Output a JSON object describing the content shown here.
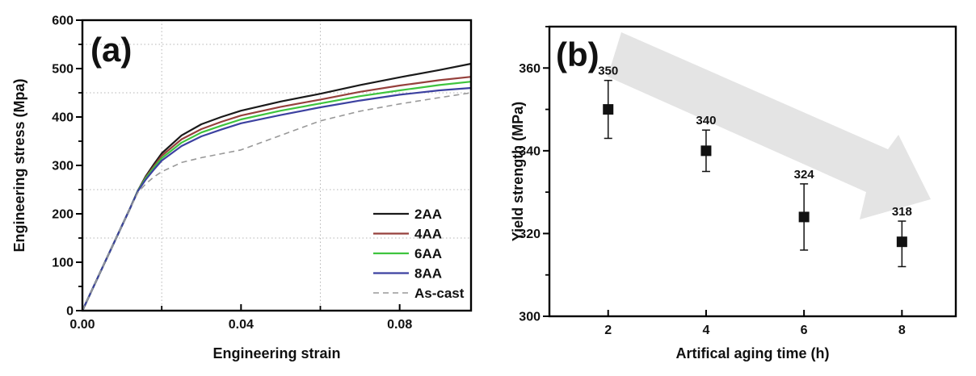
{
  "figure": {
    "background": "#ffffff",
    "frame_color": "#000000",
    "grid_color": "#b5b5b5"
  },
  "chart_data": [
    {
      "id": "a",
      "type": "line",
      "panel_label": "(a)",
      "xlabel": "Engineering strain",
      "ylabel": "Engineering stress (Mpa)",
      "xlim": [
        0,
        0.098
      ],
      "ylim": [
        0,
        600
      ],
      "xticks": {
        "major": [
          0,
          0.04,
          0.08
        ],
        "major_labels": [
          "0.00",
          "0.04",
          "0.08"
        ],
        "minor": [
          0.02,
          0.06
        ]
      },
      "yticks": {
        "major": [
          0,
          100,
          200,
          300,
          400,
          500,
          600
        ],
        "major_labels": [
          "0",
          "100",
          "200",
          "300",
          "400",
          "500",
          "600"
        ],
        "minor": [
          50,
          150,
          250,
          350,
          450,
          550
        ]
      },
      "grid": {
        "horizontal": [
          150,
          250,
          450,
          550
        ],
        "vertical": [
          0.02,
          0.06
        ],
        "style": "dotted"
      },
      "legend_position": "inside-right-bottom",
      "x": [
        0,
        0.005,
        0.01,
        0.012,
        0.014,
        0.016,
        0.018,
        0.02,
        0.025,
        0.03,
        0.035,
        0.04,
        0.05,
        0.06,
        0.07,
        0.08,
        0.09,
        0.098
      ],
      "series": [
        {
          "name": "2AA",
          "color": "#1a1a1a",
          "dashed": false,
          "values": [
            0,
            88,
            176,
            211,
            248,
            278,
            302,
            325,
            362,
            385,
            400,
            413,
            432,
            448,
            466,
            482,
            497,
            510
          ]
        },
        {
          "name": "4AA",
          "color": "#96403c",
          "dashed": false,
          "values": [
            0,
            88,
            176,
            211,
            248,
            276,
            298,
            320,
            354,
            375,
            390,
            403,
            421,
            436,
            452,
            465,
            476,
            483
          ]
        },
        {
          "name": "6AA",
          "color": "#3ec43e",
          "dashed": false,
          "values": [
            0,
            88,
            176,
            211,
            248,
            274,
            295,
            315,
            347,
            368,
            382,
            395,
            413,
            428,
            443,
            455,
            466,
            473
          ]
        },
        {
          "name": "8AA",
          "color": "#3c41a0",
          "dashed": false,
          "values": [
            0,
            88,
            176,
            211,
            247,
            271,
            291,
            310,
            340,
            360,
            374,
            387,
            404,
            420,
            434,
            446,
            455,
            460
          ]
        },
        {
          "name": "As-cast",
          "color": "#999999",
          "dashed": true,
          "values": [
            0,
            88,
            176,
            211,
            244,
            262,
            276,
            287,
            306,
            316,
            324,
            332,
            362,
            392,
            412,
            427,
            440,
            450
          ]
        }
      ]
    },
    {
      "id": "b",
      "type": "scatter",
      "panel_label": "(b)",
      "xlabel": "Artifical aging time (h)",
      "ylabel": "Yield strength (MPa)",
      "xlim": [
        0.8,
        9.1
      ],
      "ylim": [
        300,
        370
      ],
      "xticks": {
        "major": [
          2,
          4,
          6,
          8
        ],
        "major_labels": [
          "2",
          "4",
          "6",
          "8"
        ],
        "minor": []
      },
      "yticks": {
        "major": [
          300,
          320,
          340,
          360
        ],
        "major_labels": [
          "300",
          "320",
          "340",
          "360"
        ],
        "minor": [
          310,
          330,
          350,
          370
        ]
      },
      "grid": {
        "horizontal": [],
        "vertical": [],
        "style": "none"
      },
      "marker": {
        "shape": "square",
        "color": "#111111",
        "size": 13
      },
      "points": [
        {
          "x": 2,
          "y": 350,
          "err_plus": 7,
          "err_minus": 7,
          "label": "350"
        },
        {
          "x": 4,
          "y": 340,
          "err_plus": 5,
          "err_minus": 5,
          "label": "340"
        },
        {
          "x": 6,
          "y": 324,
          "err_plus": 8,
          "err_minus": 8,
          "label": "324"
        },
        {
          "x": 8,
          "y": 318,
          "err_plus": 5,
          "err_minus": 6,
          "label": "318"
        }
      ],
      "annotation": {
        "type": "trend-arrow",
        "direction": "down-right",
        "color": "#e4e4e4"
      }
    }
  ]
}
